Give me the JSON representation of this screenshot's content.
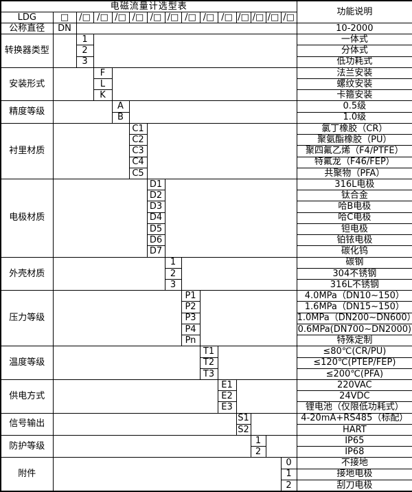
{
  "table": {
    "title": "电磁流量计选型表",
    "function_header": "功能说明",
    "model_code": "LDG",
    "box": "□",
    "slot": "/□",
    "slot_count": 13,
    "dn": {
      "label": "公称直径",
      "code": "DN",
      "desc": "10-2000"
    },
    "sections": [
      {
        "label": "转换器类型",
        "column": 1,
        "options": [
          {
            "code": "1",
            "desc": "一体式"
          },
          {
            "code": "2",
            "desc": "分体式"
          },
          {
            "code": "3",
            "desc": "低功耗式"
          }
        ]
      },
      {
        "label": "安装形式",
        "column": 2,
        "options": [
          {
            "code": "F",
            "desc": "法兰安装"
          },
          {
            "code": "L",
            "desc": "螺纹安装"
          },
          {
            "code": "K",
            "desc": "卡箍安装"
          }
        ]
      },
      {
        "label": "精度等级",
        "column": 3,
        "options": [
          {
            "code": "A",
            "desc": "0.5级"
          },
          {
            "code": "B",
            "desc": "1.0级"
          }
        ]
      },
      {
        "label": "衬里材质",
        "column": 4,
        "options": [
          {
            "code": "C1",
            "desc": "氯丁橡胶（CR）"
          },
          {
            "code": "C2",
            "desc": "聚氨酯橡胶（PU）"
          },
          {
            "code": "C3",
            "desc": "聚四氟乙烯（F4/PTFE）"
          },
          {
            "code": "C4",
            "desc": "特氟龙（F46/FEP）"
          },
          {
            "code": "C5",
            "desc": "共聚物（PFA）"
          }
        ]
      },
      {
        "label": "电极材质",
        "column": 5,
        "options": [
          {
            "code": "D1",
            "desc": "316L电极"
          },
          {
            "code": "D2",
            "desc": "钛合金"
          },
          {
            "code": "D3",
            "desc": "哈B电极"
          },
          {
            "code": "D4",
            "desc": "哈C电极"
          },
          {
            "code": "D5",
            "desc": "钽电极"
          },
          {
            "code": "D6",
            "desc": "铂铱电极"
          },
          {
            "code": "D7",
            "desc": "碳化钨"
          }
        ]
      },
      {
        "label": "外壳材质",
        "column": 6,
        "options": [
          {
            "code": "1",
            "desc": "碳钢"
          },
          {
            "code": "2",
            "desc": "304不锈钢"
          },
          {
            "code": "3",
            "desc": "316L不锈钢"
          }
        ]
      },
      {
        "label": "压力等级",
        "column": 7,
        "options": [
          {
            "code": "P1",
            "desc": "4.0MPa（DN10~150）",
            "align": "left"
          },
          {
            "code": "P2",
            "desc": "1.6MPa（DN15~150）",
            "align": "left"
          },
          {
            "code": "P3",
            "desc": "1.0MPa（DN200~DN600）",
            "align": "left"
          },
          {
            "code": "P4",
            "desc": "0.6MPa(DN700~DN2000)",
            "align": "left"
          },
          {
            "code": "Pn",
            "desc": "特殊定制"
          }
        ]
      },
      {
        "label": "温度等级",
        "column": 8,
        "options": [
          {
            "code": "T1",
            "desc": "≤80℃(CR/PU)"
          },
          {
            "code": "T2",
            "desc": "≤120℃(PTEP/FEP)"
          },
          {
            "code": "T3",
            "desc": "≤200℃(PFA)"
          }
        ]
      },
      {
        "label": "供电方式",
        "column": 9,
        "options": [
          {
            "code": "E1",
            "desc": "220VAC"
          },
          {
            "code": "E2",
            "desc": "24VDC"
          },
          {
            "code": "E3",
            "desc": "锂电池（仅限低功耗式）"
          }
        ]
      },
      {
        "label": "信号输出",
        "column": 10,
        "options": [
          {
            "code": "S1",
            "desc": "4-20mA+RS485（标配）"
          },
          {
            "code": "S2",
            "desc": "HART"
          }
        ]
      },
      {
        "label": "防护等级",
        "column": 11,
        "options": [
          {
            "code": "1",
            "desc": "IP65"
          },
          {
            "code": "2",
            "desc": "IP68"
          }
        ]
      },
      {
        "label": "附件",
        "column": 13,
        "options": [
          {
            "code": "0",
            "desc": "不接地"
          },
          {
            "code": "1",
            "desc": "接地电极"
          },
          {
            "code": "2",
            "desc": "刮刀电极"
          }
        ]
      }
    ]
  }
}
